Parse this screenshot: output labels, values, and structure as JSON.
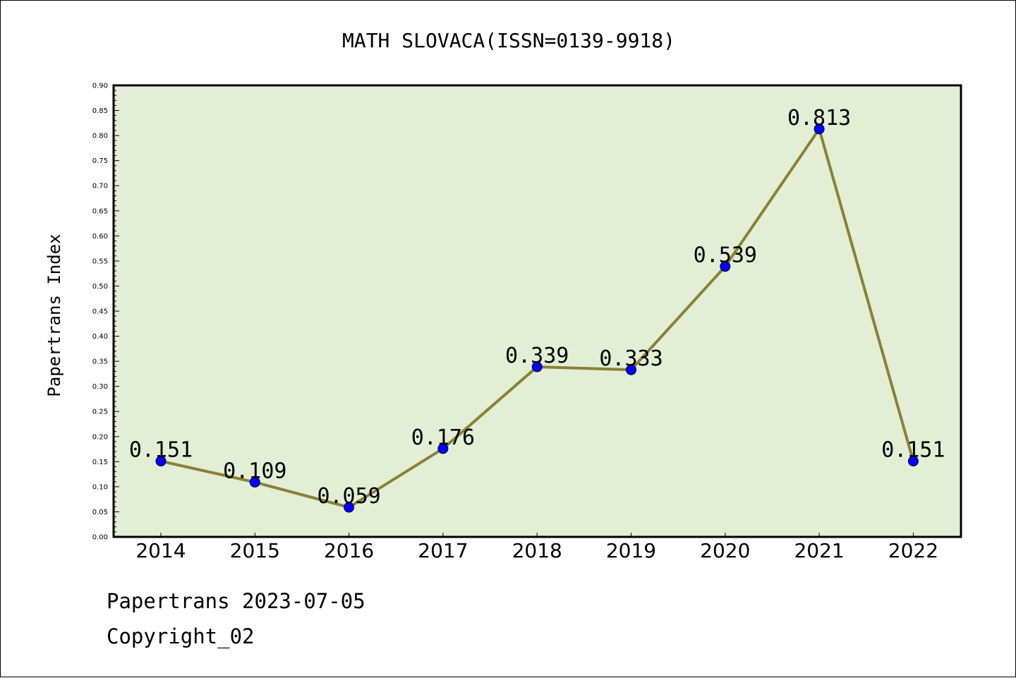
{
  "chart_data": {
    "type": "line",
    "title": "MATH SLOVACA(ISSN=0139-9918)",
    "xlabel": "",
    "ylabel": "Papertrans Index",
    "categories": [
      "2014",
      "2015",
      "2016",
      "2017",
      "2018",
      "2019",
      "2020",
      "2021",
      "2022"
    ],
    "series": [
      {
        "values": [
          0.151,
          0.109,
          0.059,
          0.176,
          0.339,
          0.333,
          0.539,
          0.813,
          0.151
        ],
        "data_labels": [
          "0.151",
          "0.109",
          "0.059",
          "0.176",
          "0.339",
          "0.333",
          "0.539",
          "0.813",
          "0.151"
        ]
      }
    ],
    "ylim": [
      0,
      0.9
    ],
    "yticks": [
      "0.00",
      "0.05",
      "0.10",
      "0.15",
      "0.20",
      "0.25",
      "0.30",
      "0.35",
      "0.40",
      "0.45",
      "0.50",
      "0.55",
      "0.60",
      "0.65",
      "0.70",
      "0.75",
      "0.80",
      "0.85",
      "0.90"
    ],
    "grid": false,
    "colors": {
      "plot_background": "#e2efd5",
      "line": "#8c8036",
      "marker": "#0000ff",
      "axis": "#000000"
    }
  },
  "footer": {
    "line1": "Papertrans 2023-07-05",
    "line2": "Copyright_02"
  }
}
